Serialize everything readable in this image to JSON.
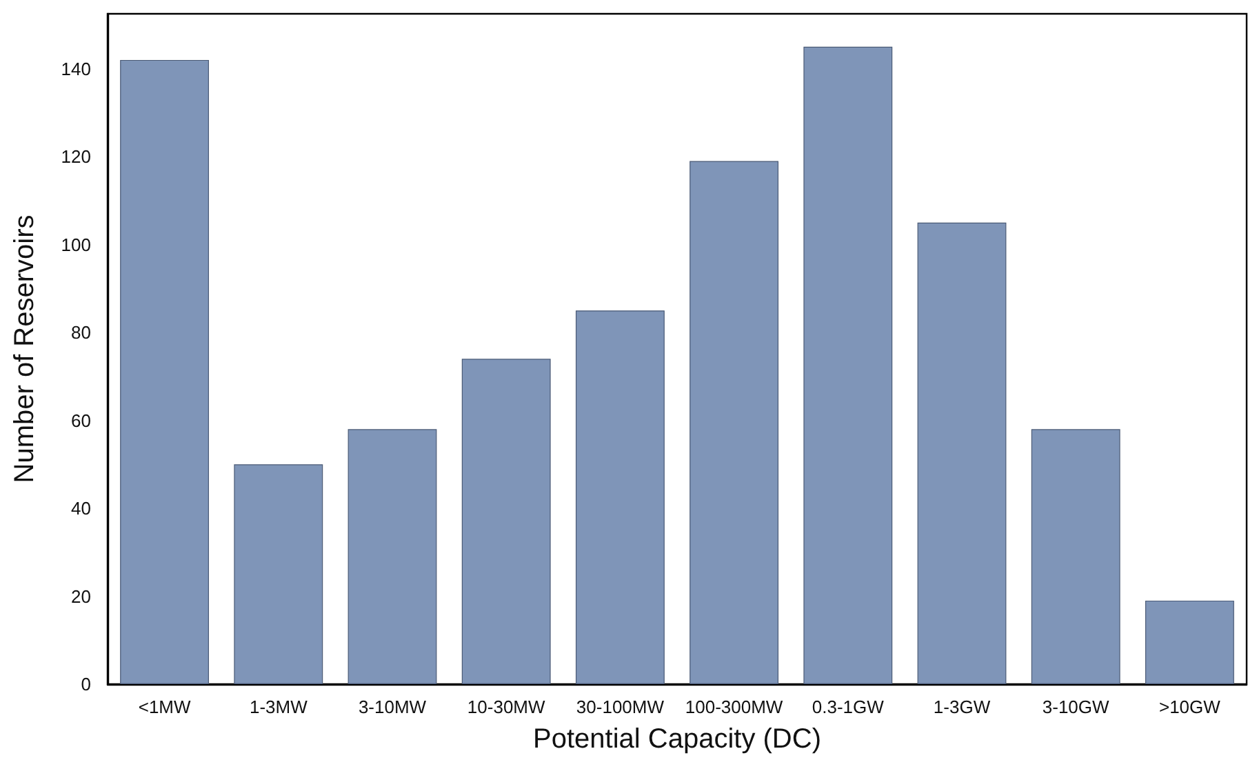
{
  "chart_data": {
    "type": "bar",
    "xlabel": "Potential Capacity (DC)",
    "ylabel": "Number of Reservoirs",
    "categories": [
      "<1MW",
      "1-3MW",
      "3-10MW",
      "10-30MW",
      "30-100MW",
      "100-300MW",
      "0.3-1GW",
      "1-3GW",
      "3-10GW",
      ">10GW"
    ],
    "values": [
      142,
      50,
      58,
      74,
      85,
      119,
      145,
      105,
      58,
      19
    ],
    "color": "#7f95b8",
    "ylim": [
      0,
      152.5
    ],
    "yticks": [
      0,
      20,
      40,
      60,
      80,
      100,
      120,
      140
    ],
    "grid": false
  }
}
